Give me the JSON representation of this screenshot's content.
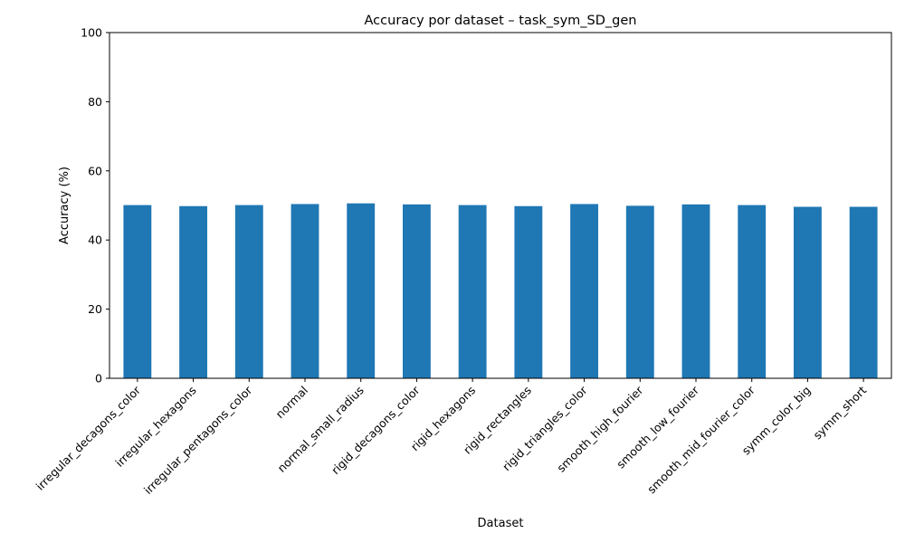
{
  "chart_data": {
    "type": "bar",
    "title": "Accuracy por dataset – task_sym_SD_gen",
    "xlabel": "Dataset",
    "ylabel": "Accuracy (%)",
    "ylim": [
      0,
      100
    ],
    "yticks": [
      0,
      20,
      40,
      60,
      80,
      100
    ],
    "grid": false,
    "legend": "none",
    "bar_color": "#1f77b4",
    "categories": [
      "irregular_decagons_color",
      "irregular_hexagons",
      "irregular_pentagons_color",
      "normal",
      "normal_small_radius",
      "rigid_decagons_color",
      "rigid_hexagons",
      "rigid_rectangles",
      "rigid_triangles_color",
      "smooth_high_fourier",
      "smooth_low_fourier",
      "smooth_mid_fourier_color",
      "symm_color_big",
      "symm_short"
    ],
    "values": [
      50.1,
      49.8,
      50.1,
      50.4,
      50.6,
      50.3,
      50.1,
      49.8,
      50.4,
      49.9,
      50.3,
      50.1,
      49.6,
      49.6
    ]
  }
}
